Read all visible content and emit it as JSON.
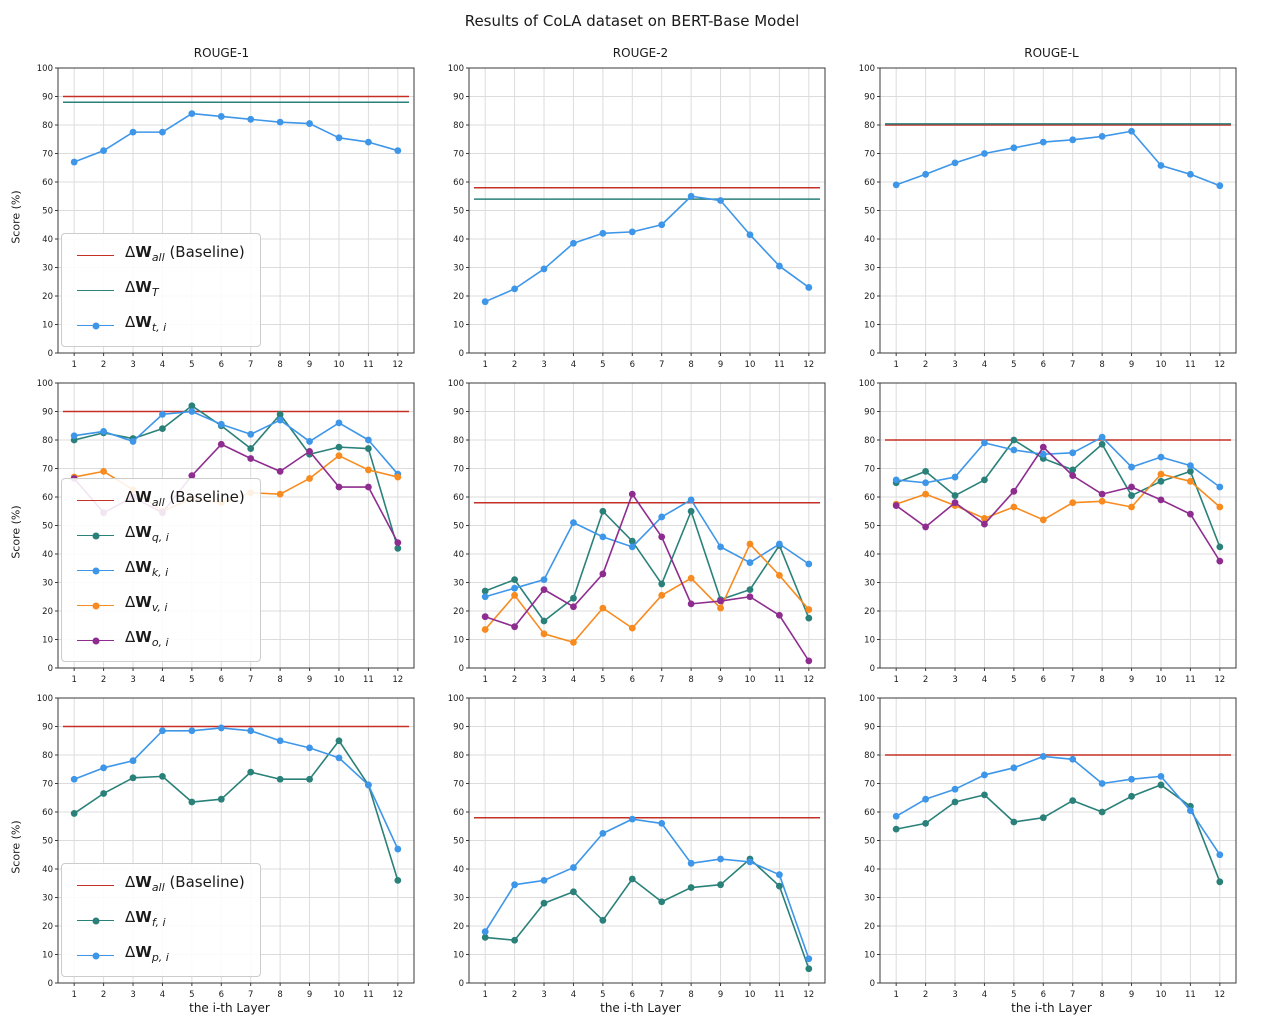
{
  "chart_data": {
    "type": "line",
    "title": "Results of CoLA dataset on BERT-Base Model",
    "xlabel": "the i-th Layer",
    "ylabel": "Score (%)",
    "columns": [
      "ROUGE-1",
      "ROUGE-2",
      "ROUGE-L"
    ],
    "x": [
      1,
      2,
      3,
      4,
      5,
      6,
      7,
      8,
      9,
      10,
      11,
      12
    ],
    "ylim": [
      0,
      100
    ],
    "yticks": [
      0,
      10,
      20,
      30,
      40,
      50,
      60,
      70,
      80,
      90,
      100
    ],
    "xpad": [
      0.45,
      12.55
    ],
    "grid": "on",
    "legend_position": "lower left (first column only)",
    "symbols": {
      "delta": "Δ",
      "matrix": "W"
    },
    "colors": {
      "red": "#c43026",
      "teal": "#2a8179",
      "blue": "#3e96e9",
      "orange": "#f78b20",
      "purple": "#8e2d8f"
    },
    "subplots": [
      {
        "row": 1,
        "col": "ROUGE-1",
        "legend": true,
        "baselines": [
          {
            "sub": "all",
            "rest": " (Baseline)",
            "color": "red",
            "value": 90,
            "marker": false
          },
          {
            "sub": "T",
            "rest": "",
            "color": "teal",
            "value": 88,
            "marker": false
          }
        ],
        "series": [
          {
            "sub": "t, i",
            "color": "blue",
            "marker": true,
            "values": [
              67,
              71,
              77.5,
              77.5,
              84,
              83,
              82,
              81,
              80.5,
              75.5,
              74,
              71
            ]
          }
        ]
      },
      {
        "row": 1,
        "col": "ROUGE-2",
        "legend": false,
        "baselines": [
          {
            "sub": "all",
            "rest": " (Baseline)",
            "color": "red",
            "value": 58,
            "marker": false
          },
          {
            "sub": "T",
            "rest": "",
            "color": "teal",
            "value": 54,
            "marker": false
          }
        ],
        "series": [
          {
            "sub": "t, i",
            "color": "blue",
            "marker": true,
            "values": [
              18,
              22.5,
              29.5,
              38.5,
              42,
              42.5,
              45,
              55,
              53.5,
              41.5,
              30.5,
              23
            ]
          }
        ]
      },
      {
        "row": 1,
        "col": "ROUGE-L",
        "legend": false,
        "baselines": [
          {
            "sub": "all",
            "rest": " (Baseline)",
            "color": "red",
            "value": 80,
            "marker": false
          },
          {
            "sub": "T",
            "rest": "",
            "color": "teal",
            "value": 80.4,
            "marker": false
          }
        ],
        "series": [
          {
            "sub": "t, i",
            "color": "blue",
            "marker": true,
            "values": [
              59,
              62.7,
              66.7,
              70,
              72,
              74,
              74.8,
              76,
              77.8,
              65.8,
              62.7,
              58.7
            ]
          }
        ]
      },
      {
        "row": 2,
        "col": "ROUGE-1",
        "legend": true,
        "baselines": [
          {
            "sub": "all",
            "rest": " (Baseline)",
            "color": "red",
            "value": 90,
            "marker": false
          }
        ],
        "series": [
          {
            "sub": "q, i",
            "color": "teal",
            "marker": true,
            "values": [
              80,
              82.5,
              80.5,
              84,
              92,
              85,
              77,
              89,
              75,
              77.5,
              77,
              42
            ]
          },
          {
            "sub": "k, i",
            "color": "blue",
            "marker": true,
            "values": [
              81.5,
              83,
              79.5,
              89,
              90,
              85.5,
              82,
              87,
              79.5,
              86,
              80,
              68
            ]
          },
          {
            "sub": "v, i",
            "color": "orange",
            "marker": true,
            "values": [
              67,
              69,
              62.5,
              55,
              59.5,
              58,
              61.5,
              61,
              66.5,
              74.5,
              69.5,
              67
            ]
          },
          {
            "sub": "o, i",
            "color": "purple",
            "marker": true,
            "values": [
              66.5,
              54.5,
              60,
              54.5,
              67.5,
              78.5,
              73.5,
              69,
              76,
              63.5,
              63.5,
              44
            ]
          }
        ]
      },
      {
        "row": 2,
        "col": "ROUGE-2",
        "legend": false,
        "baselines": [
          {
            "sub": "all",
            "rest": " (Baseline)",
            "color": "red",
            "value": 58,
            "marker": false
          }
        ],
        "series": [
          {
            "sub": "q, i",
            "color": "teal",
            "marker": true,
            "values": [
              27,
              31,
              16.5,
              24.5,
              55,
              44.5,
              29.5,
              55,
              24,
              27.5,
              43,
              17.5
            ]
          },
          {
            "sub": "k, i",
            "color": "blue",
            "marker": true,
            "values": [
              25,
              28,
              31,
              51,
              46,
              42.5,
              53,
              59,
              42.5,
              37,
              43.5,
              36.5
            ]
          },
          {
            "sub": "v, i",
            "color": "orange",
            "marker": true,
            "values": [
              13.5,
              25.5,
              12,
              9,
              21,
              14,
              25.5,
              31.5,
              21,
              43.5,
              32.5,
              20.5
            ]
          },
          {
            "sub": "o, i",
            "color": "purple",
            "marker": true,
            "values": [
              18,
              14.5,
              27.5,
              21.5,
              33,
              61,
              46,
              22.5,
              23.5,
              25,
              18.5,
              2.5
            ]
          }
        ]
      },
      {
        "row": 2,
        "col": "ROUGE-L",
        "legend": false,
        "baselines": [
          {
            "sub": "all",
            "rest": " (Baseline)",
            "color": "red",
            "value": 80,
            "marker": false
          }
        ],
        "series": [
          {
            "sub": "q, i",
            "color": "teal",
            "marker": true,
            "values": [
              65,
              69,
              60.5,
              66,
              80,
              73.5,
              69.5,
              78.5,
              60.5,
              65.5,
              69,
              42.5
            ]
          },
          {
            "sub": "k, i",
            "color": "blue",
            "marker": true,
            "values": [
              66,
              65,
              67,
              79,
              76.5,
              75,
              75.5,
              81,
              70.5,
              74,
              71,
              63.5
            ]
          },
          {
            "sub": "v, i",
            "color": "orange",
            "marker": true,
            "values": [
              57.5,
              61,
              57,
              52.5,
              56.5,
              52,
              58,
              58.5,
              56.5,
              68,
              65.5,
              56.5
            ]
          },
          {
            "sub": "o, i",
            "color": "purple",
            "marker": true,
            "values": [
              57,
              49.5,
              58,
              50.5,
              62,
              77.5,
              67.5,
              61,
              63.5,
              59,
              54,
              37.5
            ]
          }
        ]
      },
      {
        "row": 3,
        "col": "ROUGE-1",
        "legend": true,
        "baselines": [
          {
            "sub": "all",
            "rest": " (Baseline)",
            "color": "red",
            "value": 90,
            "marker": false
          }
        ],
        "series": [
          {
            "sub": "f, i",
            "color": "teal",
            "marker": true,
            "values": [
              59.5,
              66.5,
              72,
              72.5,
              63.5,
              64.5,
              74,
              71.5,
              71.5,
              85,
              69.5,
              36
            ]
          },
          {
            "sub": "p, i",
            "color": "blue",
            "marker": true,
            "values": [
              71.5,
              75.5,
              78,
              88.5,
              88.5,
              89.5,
              88.5,
              85,
              82.5,
              79,
              69.5,
              47
            ]
          }
        ]
      },
      {
        "row": 3,
        "col": "ROUGE-2",
        "legend": false,
        "baselines": [
          {
            "sub": "all",
            "rest": " (Baseline)",
            "color": "red",
            "value": 58,
            "marker": false
          }
        ],
        "series": [
          {
            "sub": "f, i",
            "color": "teal",
            "marker": true,
            "values": [
              16,
              15,
              28,
              32,
              22,
              36.5,
              28.5,
              33.5,
              34.5,
              43.5,
              34,
              5
            ]
          },
          {
            "sub": "p, i",
            "color": "blue",
            "marker": true,
            "values": [
              18,
              34.5,
              36,
              40.5,
              52.5,
              57.5,
              56,
              42,
              43.5,
              42.5,
              38,
              8.5
            ]
          }
        ]
      },
      {
        "row": 3,
        "col": "ROUGE-L",
        "legend": false,
        "baselines": [
          {
            "sub": "all",
            "rest": " (Baseline)",
            "color": "red",
            "value": 80,
            "marker": false
          }
        ],
        "series": [
          {
            "sub": "f, i",
            "color": "teal",
            "marker": true,
            "values": [
              54,
              56,
              63.5,
              66,
              56.5,
              58,
              64,
              60,
              65.5,
              69.5,
              62,
              35.5
            ]
          },
          {
            "sub": "p, i",
            "color": "blue",
            "marker": true,
            "values": [
              58.5,
              64.5,
              68,
              73,
              75.5,
              79.5,
              78.5,
              70,
              71.5,
              72.5,
              60.5,
              45
            ]
          }
        ]
      }
    ]
  }
}
